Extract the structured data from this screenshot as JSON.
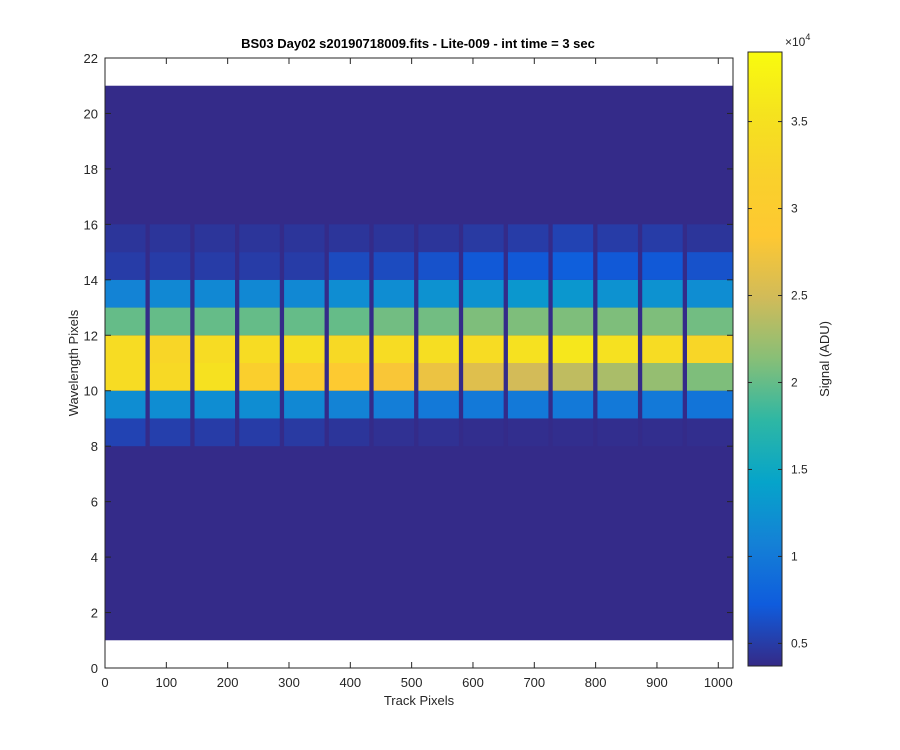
{
  "chart_data": {
    "type": "heatmap",
    "title": "BS03 Day02  s20190718009.fits - Lite-009 - int time = 3 sec",
    "xlabel": "Track Pixels",
    "ylabel": "Wavelength Pixels",
    "xlim": [
      0,
      1024
    ],
    "ylim": [
      0,
      22
    ],
    "x_ticks": [
      0,
      100,
      200,
      300,
      400,
      500,
      600,
      700,
      800,
      900,
      1000
    ],
    "y_ticks": [
      0,
      2,
      4,
      6,
      8,
      10,
      12,
      14,
      16,
      18,
      20,
      22
    ],
    "data_extent": {
      "x": [
        0,
        1024
      ],
      "y": [
        1,
        21
      ]
    },
    "colormap": "parula",
    "colorbar": {
      "label": "Signal (ADU)",
      "exponent_label": "×10",
      "exponent": "4",
      "range": [
        0.37,
        3.9
      ],
      "ticks": [
        0.5,
        1,
        1.5,
        2,
        2.5,
        3,
        3.5
      ],
      "tick_labels": [
        "0.5",
        "1",
        "1.5",
        "2",
        "2.5",
        "3",
        "3.5"
      ]
    },
    "background_level": 0.38,
    "tracks": [
      {
        "x": [
          0,
          66
        ],
        "rows": {
          "8": 0.55,
          "9": 1.2,
          "10": 3.4,
          "11": 3.4,
          "12": 2.0,
          "13": 1.1,
          "14": 0.5,
          "15": 0.45
        }
      },
      {
        "x": [
          73,
          139
        ],
        "rows": {
          "8": 0.52,
          "9": 1.2,
          "10": 3.35,
          "11": 3.3,
          "12": 2.0,
          "13": 1.15,
          "14": 0.5,
          "15": 0.45
        }
      },
      {
        "x": [
          146,
          212
        ],
        "rows": {
          "8": 0.5,
          "9": 1.2,
          "10": 3.5,
          "11": 3.4,
          "12": 2.0,
          "13": 1.15,
          "14": 0.5,
          "15": 0.45
        }
      },
      {
        "x": [
          219,
          285
        ],
        "rows": {
          "8": 0.5,
          "9": 1.2,
          "10": 3.1,
          "11": 3.4,
          "12": 2.0,
          "13": 1.15,
          "14": 0.5,
          "15": 0.45
        }
      },
      {
        "x": [
          292,
          358
        ],
        "rows": {
          "8": 0.48,
          "9": 1.15,
          "10": 3.0,
          "11": 3.45,
          "12": 2.0,
          "13": 1.15,
          "14": 0.5,
          "15": 0.45
        }
      },
      {
        "x": [
          365,
          431
        ],
        "rows": {
          "8": 0.45,
          "9": 1.1,
          "10": 2.9,
          "11": 3.35,
          "12": 2.0,
          "13": 1.2,
          "14": 0.6,
          "15": 0.45
        }
      },
      {
        "x": [
          438,
          504
        ],
        "rows": {
          "8": 0.42,
          "9": 1.05,
          "10": 2.8,
          "11": 3.4,
          "12": 2.05,
          "13": 1.2,
          "14": 0.6,
          "15": 0.45
        }
      },
      {
        "x": [
          511,
          577
        ],
        "rows": {
          "8": 0.42,
          "9": 1.0,
          "10": 2.7,
          "11": 3.45,
          "12": 2.05,
          "13": 1.25,
          "14": 0.65,
          "15": 0.45
        }
      },
      {
        "x": [
          584,
          650
        ],
        "rows": {
          "8": 0.4,
          "9": 1.0,
          "10": 2.6,
          "11": 3.4,
          "12": 2.1,
          "13": 1.25,
          "14": 0.7,
          "15": 0.48
        }
      },
      {
        "x": [
          657,
          723
        ],
        "rows": {
          "8": 0.4,
          "9": 1.0,
          "10": 2.5,
          "11": 3.5,
          "12": 2.1,
          "13": 1.3,
          "14": 0.7,
          "15": 0.5
        }
      },
      {
        "x": [
          730,
          796
        ],
        "rows": {
          "8": 0.4,
          "9": 1.0,
          "10": 2.4,
          "11": 3.6,
          "12": 2.1,
          "13": 1.3,
          "14": 0.75,
          "15": 0.55
        }
      },
      {
        "x": [
          803,
          869
        ],
        "rows": {
          "8": 0.4,
          "9": 1.0,
          "10": 2.3,
          "11": 3.5,
          "12": 2.1,
          "13": 1.25,
          "14": 0.7,
          "15": 0.5
        }
      },
      {
        "x": [
          876,
          942
        ],
        "rows": {
          "8": 0.4,
          "9": 1.0,
          "10": 2.2,
          "11": 3.4,
          "12": 2.1,
          "13": 1.25,
          "14": 0.7,
          "15": 0.5
        }
      },
      {
        "x": [
          949,
          1024
        ],
        "rows": {
          "8": 0.4,
          "9": 0.95,
          "10": 2.1,
          "11": 3.3,
          "12": 2.05,
          "13": 1.2,
          "14": 0.65,
          "15": 0.45
        }
      }
    ]
  }
}
